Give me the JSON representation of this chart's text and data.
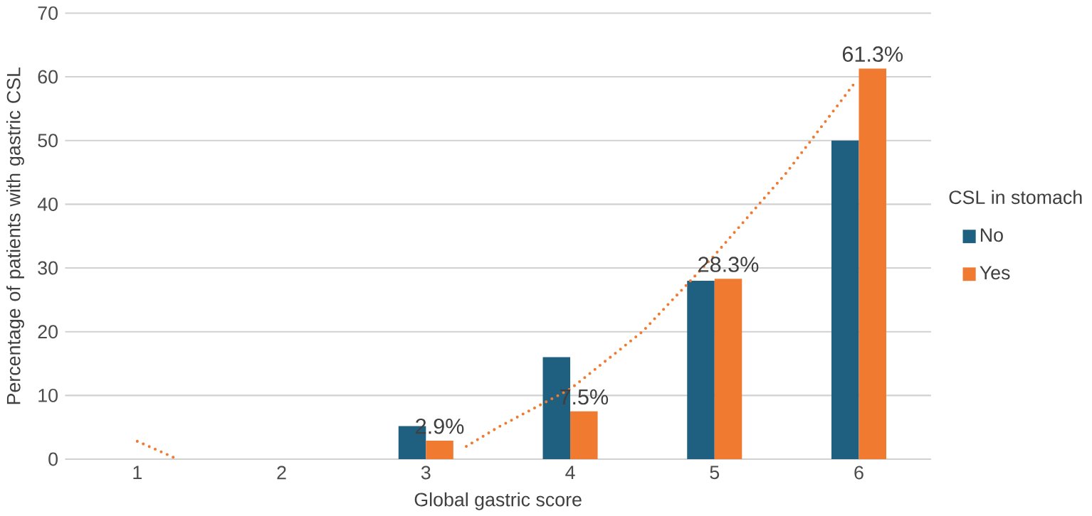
{
  "chart_data": {
    "type": "bar",
    "xlabel": "Global gastric score",
    "ylabel": "Percentage of patients with gastric CSL",
    "legend_title": "CSL in stomach",
    "x": [
      1,
      2,
      3,
      4,
      5,
      6
    ],
    "xlim": [
      0.5,
      6.5
    ],
    "xticks": [
      1,
      2,
      3,
      4,
      5,
      6
    ],
    "ylim": [
      0,
      70
    ],
    "yticks": [
      0,
      10,
      20,
      30,
      40,
      50,
      60,
      70
    ],
    "grid": "y",
    "legend": "right",
    "series": [
      {
        "name": "No",
        "color": "#1f5f80",
        "values": [
          0,
          0,
          5.2,
          16,
          28,
          50
        ]
      },
      {
        "name": "Yes",
        "color": "#f07a30",
        "values": [
          0,
          0,
          2.9,
          7.5,
          28.3,
          61.3
        ],
        "value_labels": [
          null,
          null,
          "2.9%",
          "7.5%",
          "28.3%",
          "61.3%"
        ]
      },
      {
        "type": "line",
        "color": "#f07a30",
        "line_style": "dotted",
        "x": [
          1,
          1.28,
          2,
          3.28,
          3.5,
          4,
          4.5,
          5,
          5.5,
          5.97
        ],
        "values": [
          2.8,
          0,
          null,
          2,
          5,
          11,
          20,
          32,
          45,
          59
        ]
      }
    ]
  }
}
